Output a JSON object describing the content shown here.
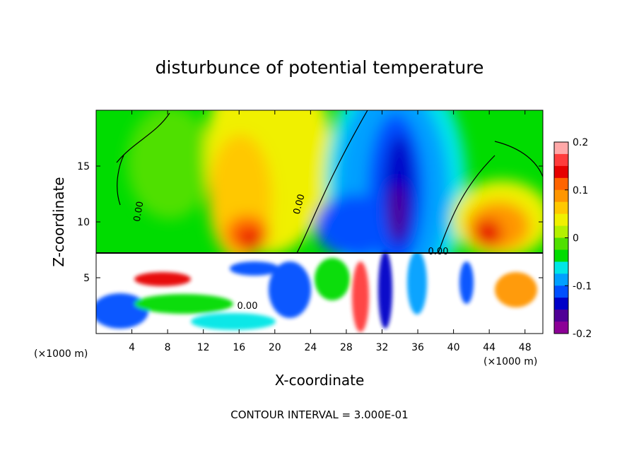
{
  "chart_data": {
    "type": "contour",
    "title": "disturbunce of potential temperature",
    "x_label": "X-coordinate",
    "y_label": "Z-coordinate",
    "x_unit_left": "(×1000 m)",
    "x_unit_right": "(×1000 m)",
    "footer": "CONTOUR INTERVAL = 3.000E-01",
    "xlim": [
      0,
      50
    ],
    "xticks": [
      4,
      8,
      12,
      16,
      20,
      24,
      28,
      32,
      36,
      40,
      44,
      48
    ],
    "ylim": [
      0,
      20
    ],
    "yticks": [
      5,
      10,
      15
    ],
    "contour_labels": [
      "0.00",
      "0.00",
      "0.00",
      "0.00"
    ],
    "colorbar": {
      "lim": [
        -0.2,
        0.2
      ],
      "ticks": [
        0.2,
        0.1,
        0,
        -0.1,
        -0.2
      ],
      "colors": [
        "#ffa8a8",
        "#ff3c3c",
        "#e60000",
        "#ff6400",
        "#ff9600",
        "#ffc800",
        "#f0f000",
        "#b4f000",
        "#50e000",
        "#00dc00",
        "#00e6e6",
        "#00a0ff",
        "#0050ff",
        "#0000c8",
        "#500096",
        "#8c0096"
      ]
    }
  }
}
